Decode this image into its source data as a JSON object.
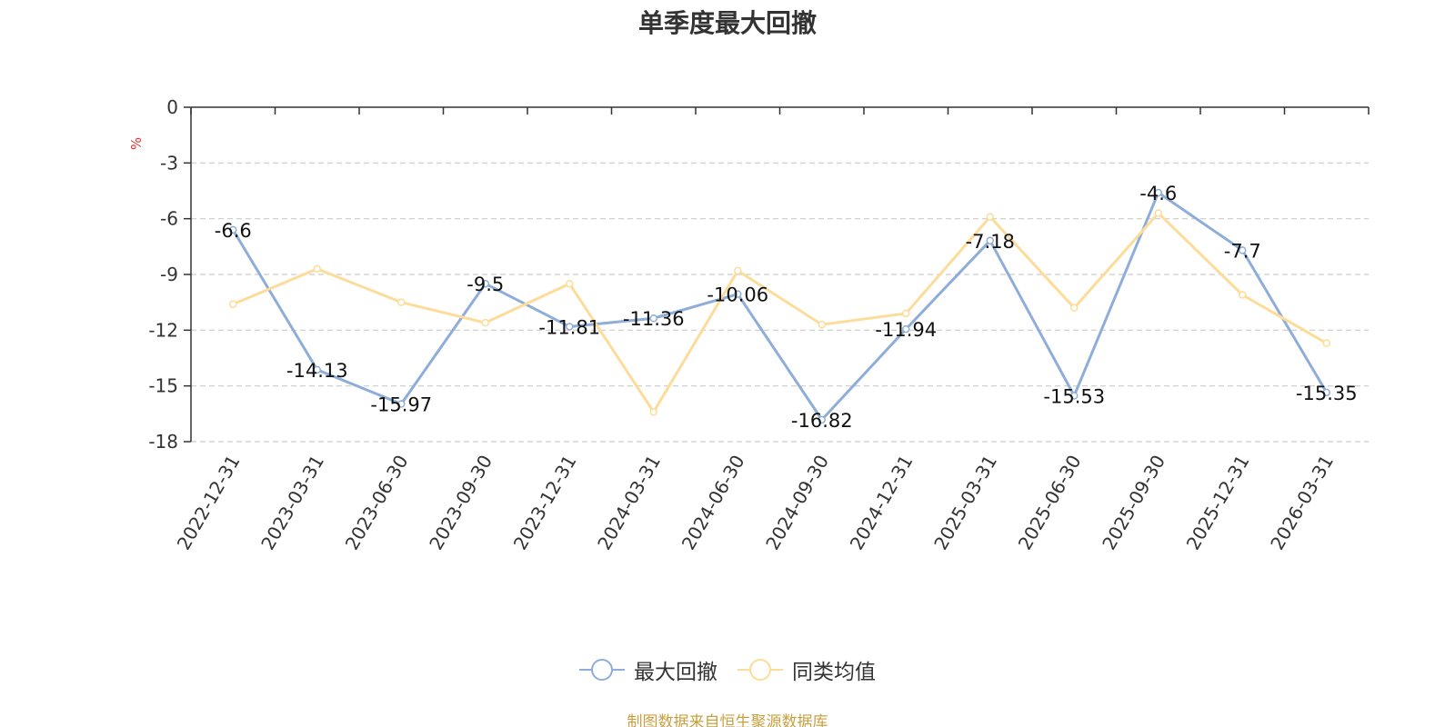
{
  "title": "单季度最大回撤",
  "source": "制图数据来自恒生聚源数据库",
  "legend": [
    {
      "name": "最大回撤",
      "color": "#8eadd9"
    },
    {
      "name": "同类均值",
      "color": "#fcdc98"
    }
  ],
  "chart_data": {
    "type": "line",
    "title": "单季度最大回撤",
    "ylabel": "%",
    "ylabel_color": "#e83030",
    "ylim": [
      -18,
      0
    ],
    "yticks": [
      0,
      -3,
      -6,
      -9,
      -12,
      -15,
      -18
    ],
    "grid": true,
    "legend_position": "bottom-center",
    "categories": [
      "2022-12-31",
      "2023-03-31",
      "2023-06-30",
      "2023-09-30",
      "2023-12-31",
      "2024-03-31",
      "2024-06-30",
      "2024-09-30",
      "2024-12-31",
      "2025-03-31",
      "2025-06-30",
      "2025-09-30",
      "2025-12-31",
      "2026-03-31"
    ],
    "series": [
      {
        "name": "最大回撤",
        "color": "#8eadd9",
        "show_labels": true,
        "values": [
          -6.6,
          -14.13,
          -15.97,
          -9.5,
          -11.81,
          -11.36,
          -10.06,
          -16.82,
          -11.94,
          -7.18,
          -15.53,
          -4.6,
          -7.7,
          -15.35
        ]
      },
      {
        "name": "同类均值",
        "color": "#fcdc98",
        "show_labels": false,
        "values": [
          -10.6,
          -8.7,
          -10.5,
          -11.6,
          -9.5,
          -16.4,
          -8.8,
          -11.7,
          -11.1,
          -5.9,
          -10.8,
          -5.7,
          -10.1,
          -12.7
        ]
      }
    ]
  }
}
